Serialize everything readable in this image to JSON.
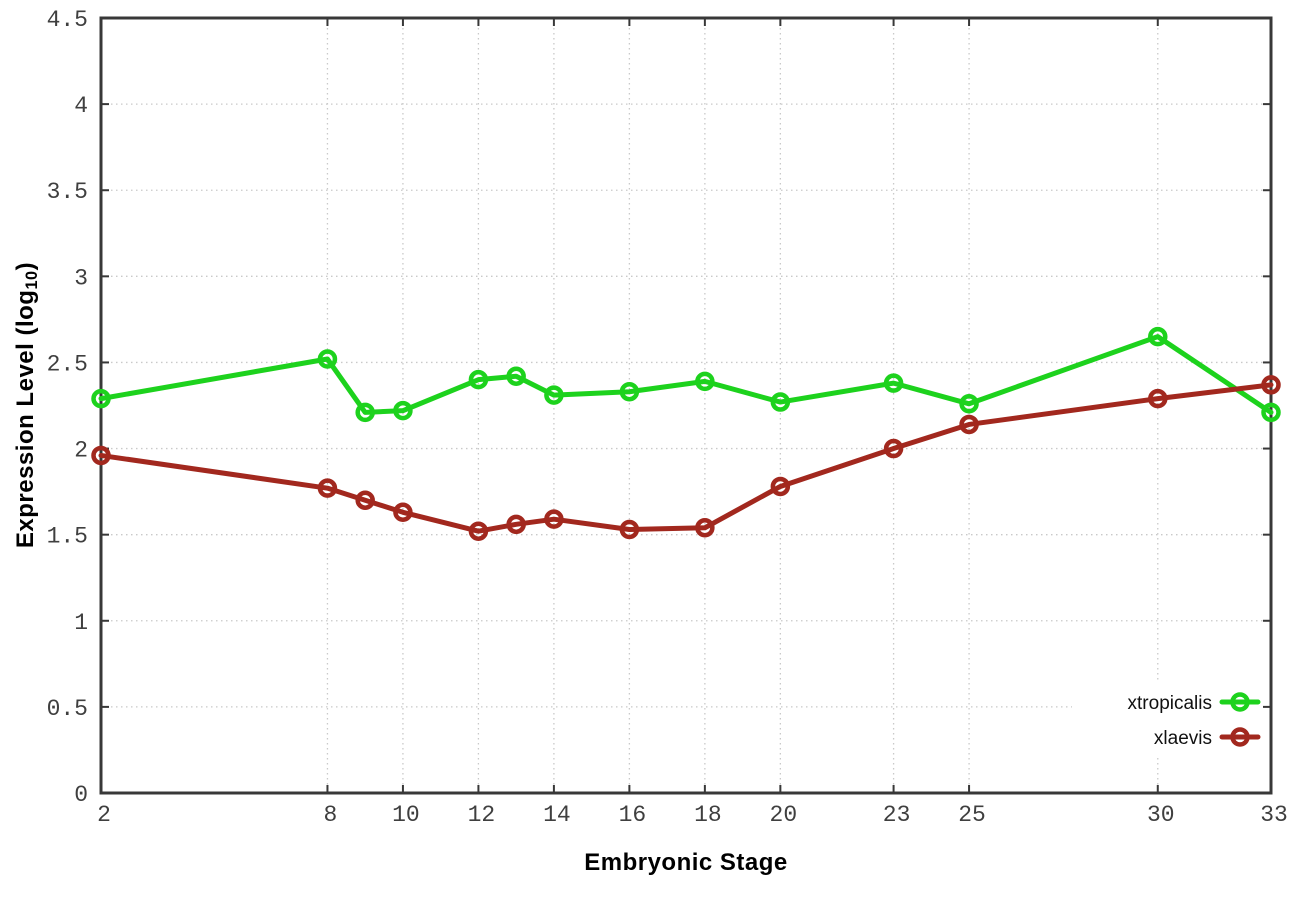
{
  "figure": {
    "xlabel": "Embryonic Stage",
    "ylabel_prefix": "Expression Level (log",
    "ylabel_sub": "10",
    "ylabel_suffix": ")"
  },
  "chart_data": {
    "type": "line",
    "title": "",
    "xlabel": "Embryonic Stage",
    "ylabel": "Expression Level (log10)",
    "x": [
      2,
      8,
      9,
      10,
      12,
      13,
      14,
      16,
      18,
      20,
      23,
      25,
      30,
      33
    ],
    "series": [
      {
        "name": "xtropicalis",
        "color": "#1dd21d",
        "marker": "open-circle",
        "values": [
          2.29,
          2.52,
          2.21,
          2.22,
          2.4,
          2.42,
          2.31,
          2.33,
          2.39,
          2.27,
          2.38,
          2.26,
          2.65,
          2.21
        ]
      },
      {
        "name": "xlaevis",
        "color": "#a2281e",
        "marker": "open-circle",
        "values": [
          1.96,
          1.77,
          1.7,
          1.63,
          1.52,
          1.56,
          1.59,
          1.53,
          1.54,
          1.78,
          2.0,
          2.14,
          2.29,
          2.37
        ]
      }
    ],
    "xlim": [
      2,
      33
    ],
    "ylim": [
      0,
      4.5
    ],
    "x_ticks": [
      2,
      8,
      10,
      12,
      14,
      16,
      18,
      20,
      23,
      25,
      30,
      33
    ],
    "x_tick_labels": [
      "2",
      "8",
      "10",
      "12",
      "14",
      "16",
      "18",
      "20",
      "23",
      "25",
      "30",
      "33"
    ],
    "y_ticks": [
      0,
      0.5,
      1,
      1.5,
      2,
      2.5,
      3,
      3.5,
      4,
      4.5
    ],
    "y_tick_labels": [
      "0",
      "0.5",
      "1",
      "1.5",
      "2",
      "2.5",
      "3",
      "3.5",
      "4",
      "4.5"
    ],
    "grid": true,
    "legend_position": "bottom-right",
    "colors": {
      "axis": "#383838",
      "grid": "#c9c9c9",
      "tick_text": "#3f3f3f",
      "legend_text": "#111111"
    }
  }
}
